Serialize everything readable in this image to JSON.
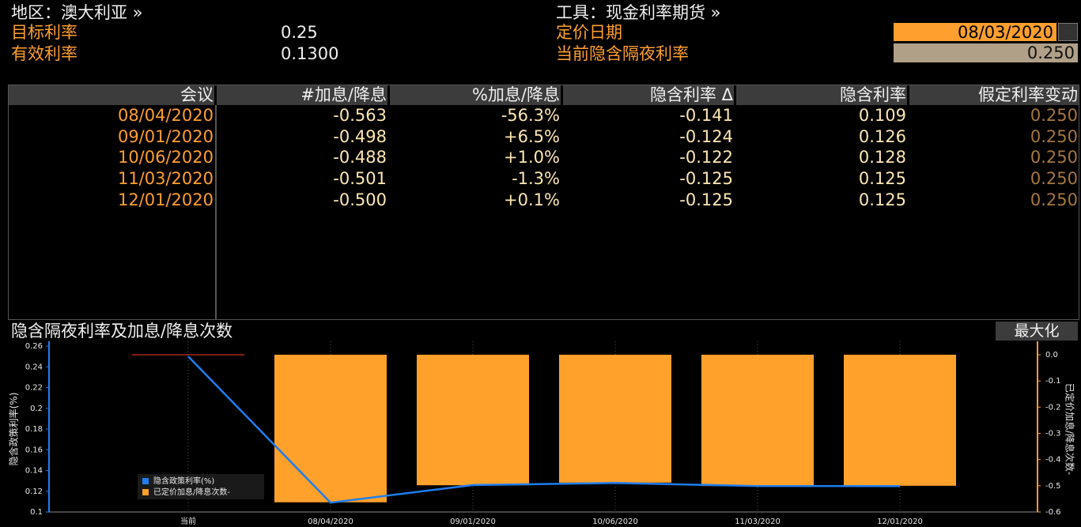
{
  "header": {
    "region": "地区：澳大利亚 »",
    "target_rate_label": "目标利率",
    "target_rate": "0.25",
    "effective_rate_label": "有效利率",
    "effective_rate": "0.1300",
    "instrument": "工具：现金利率期货 »",
    "pricing_date_label": "定价日期",
    "pricing_date": "08/03/2020",
    "implied_overnight_label": "当前隐含隔夜利率",
    "implied_overnight": "0.250"
  },
  "table": {
    "columns": [
      "会议",
      "#加息/降息",
      "%加息/降息",
      "隐含利率 Δ",
      "隐含利率",
      "假定利率变动"
    ],
    "rows": [
      [
        "08/04/2020",
        "-0.563",
        "-56.3%",
        "-0.141",
        "0.109",
        "0.250"
      ],
      [
        "09/01/2020",
        "-0.498",
        "+6.5%",
        "-0.124",
        "0.126",
        "0.250"
      ],
      [
        "10/06/2020",
        "-0.488",
        "+1.0%",
        "-0.122",
        "0.128",
        "0.250"
      ],
      [
        "11/03/2020",
        "-0.501",
        "-1.3%",
        "-0.125",
        "0.125",
        "0.250"
      ],
      [
        "12/01/2020",
        "-0.500",
        "+0.1%",
        "-0.125",
        "0.125",
        "0.250"
      ]
    ]
  },
  "chart_panel": {
    "title": "隐含隔夜利率及加息/降息次数",
    "maximize": "最大化"
  },
  "chart_data": {
    "type": "combo",
    "categories": [
      "当前",
      "08/04/2020",
      "09/01/2020",
      "10/06/2020",
      "11/03/2020",
      "12/01/2020"
    ],
    "series": [
      {
        "name": "隐含政策利率(%)",
        "type": "line",
        "color": "#1f7ef0",
        "values": [
          0.25,
          0.109,
          0.126,
          0.128,
          0.125,
          0.125
        ]
      },
      {
        "name": "已定价加息/降息次数-",
        "type": "bar",
        "axis": "y2",
        "color": "#ffa12b",
        "zero_color": "#ff3b1f",
        "values": [
          0,
          -0.563,
          -0.498,
          -0.488,
          -0.501,
          -0.5
        ]
      }
    ],
    "ylabel": "隐含政策利率(%)",
    "y2label": "已定价加息/降息次数-",
    "ylim": [
      0.1,
      0.26
    ],
    "yticks": [
      0.1,
      0.12,
      0.14,
      0.16,
      0.18,
      0.2,
      0.22,
      0.24,
      0.26
    ],
    "y2lim": [
      -0.6,
      0.033
    ],
    "y2ticks": [
      -0.6,
      -0.5,
      -0.4,
      -0.3,
      -0.2,
      -0.1,
      {
        "value": 0,
        "label": "0.0"
      }
    ],
    "grid": true
  }
}
